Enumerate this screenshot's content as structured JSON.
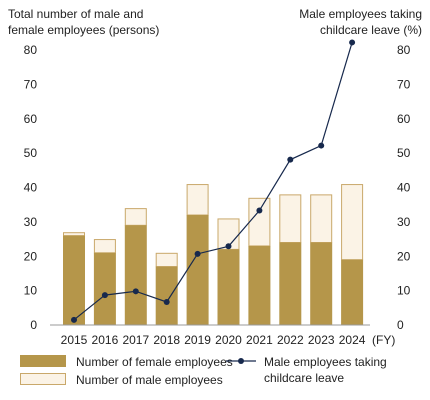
{
  "chart_data": {
    "type": "bar",
    "stacked": true,
    "categories": [
      "2015",
      "2016",
      "2017",
      "2018",
      "2019",
      "2020",
      "2021",
      "2022",
      "2023",
      "2024"
    ],
    "x_unit": "(FY)",
    "left_axis": {
      "title_lines": [
        "Total number of male and",
        "female employees (persons)"
      ],
      "ylim": [
        0,
        80
      ],
      "ticks": [
        0,
        10,
        20,
        30,
        40,
        50,
        60,
        70,
        80
      ]
    },
    "right_axis": {
      "title_lines": [
        "Male employees taking",
        "childcare leave (%)"
      ],
      "ylim": [
        0,
        80
      ],
      "ticks": [
        0,
        10,
        20,
        30,
        40,
        50,
        60,
        70,
        80
      ]
    },
    "series": [
      {
        "name": "Number of female employees",
        "type": "bar",
        "axis": "left",
        "color": "#b5964a",
        "values": [
          26,
          21,
          29,
          17,
          32,
          22,
          23,
          24,
          24,
          19
        ]
      },
      {
        "name": "Number of male employees",
        "type": "bar",
        "axis": "left",
        "color": "#fbf3e6",
        "stroke": "#c9a86a",
        "values": [
          1,
          4,
          5,
          4,
          9,
          9,
          14,
          14,
          14,
          22
        ]
      },
      {
        "name_lines": [
          "Male employees taking",
          "childcare leave"
        ],
        "type": "line",
        "axis": "right",
        "color": "#17294d",
        "values": [
          1.5,
          8.7,
          9.8,
          6.7,
          20.7,
          22.9,
          33.3,
          48.1,
          52.2,
          82.2
        ]
      }
    ],
    "legend": {
      "placement": "bottom"
    },
    "grid": false
  }
}
